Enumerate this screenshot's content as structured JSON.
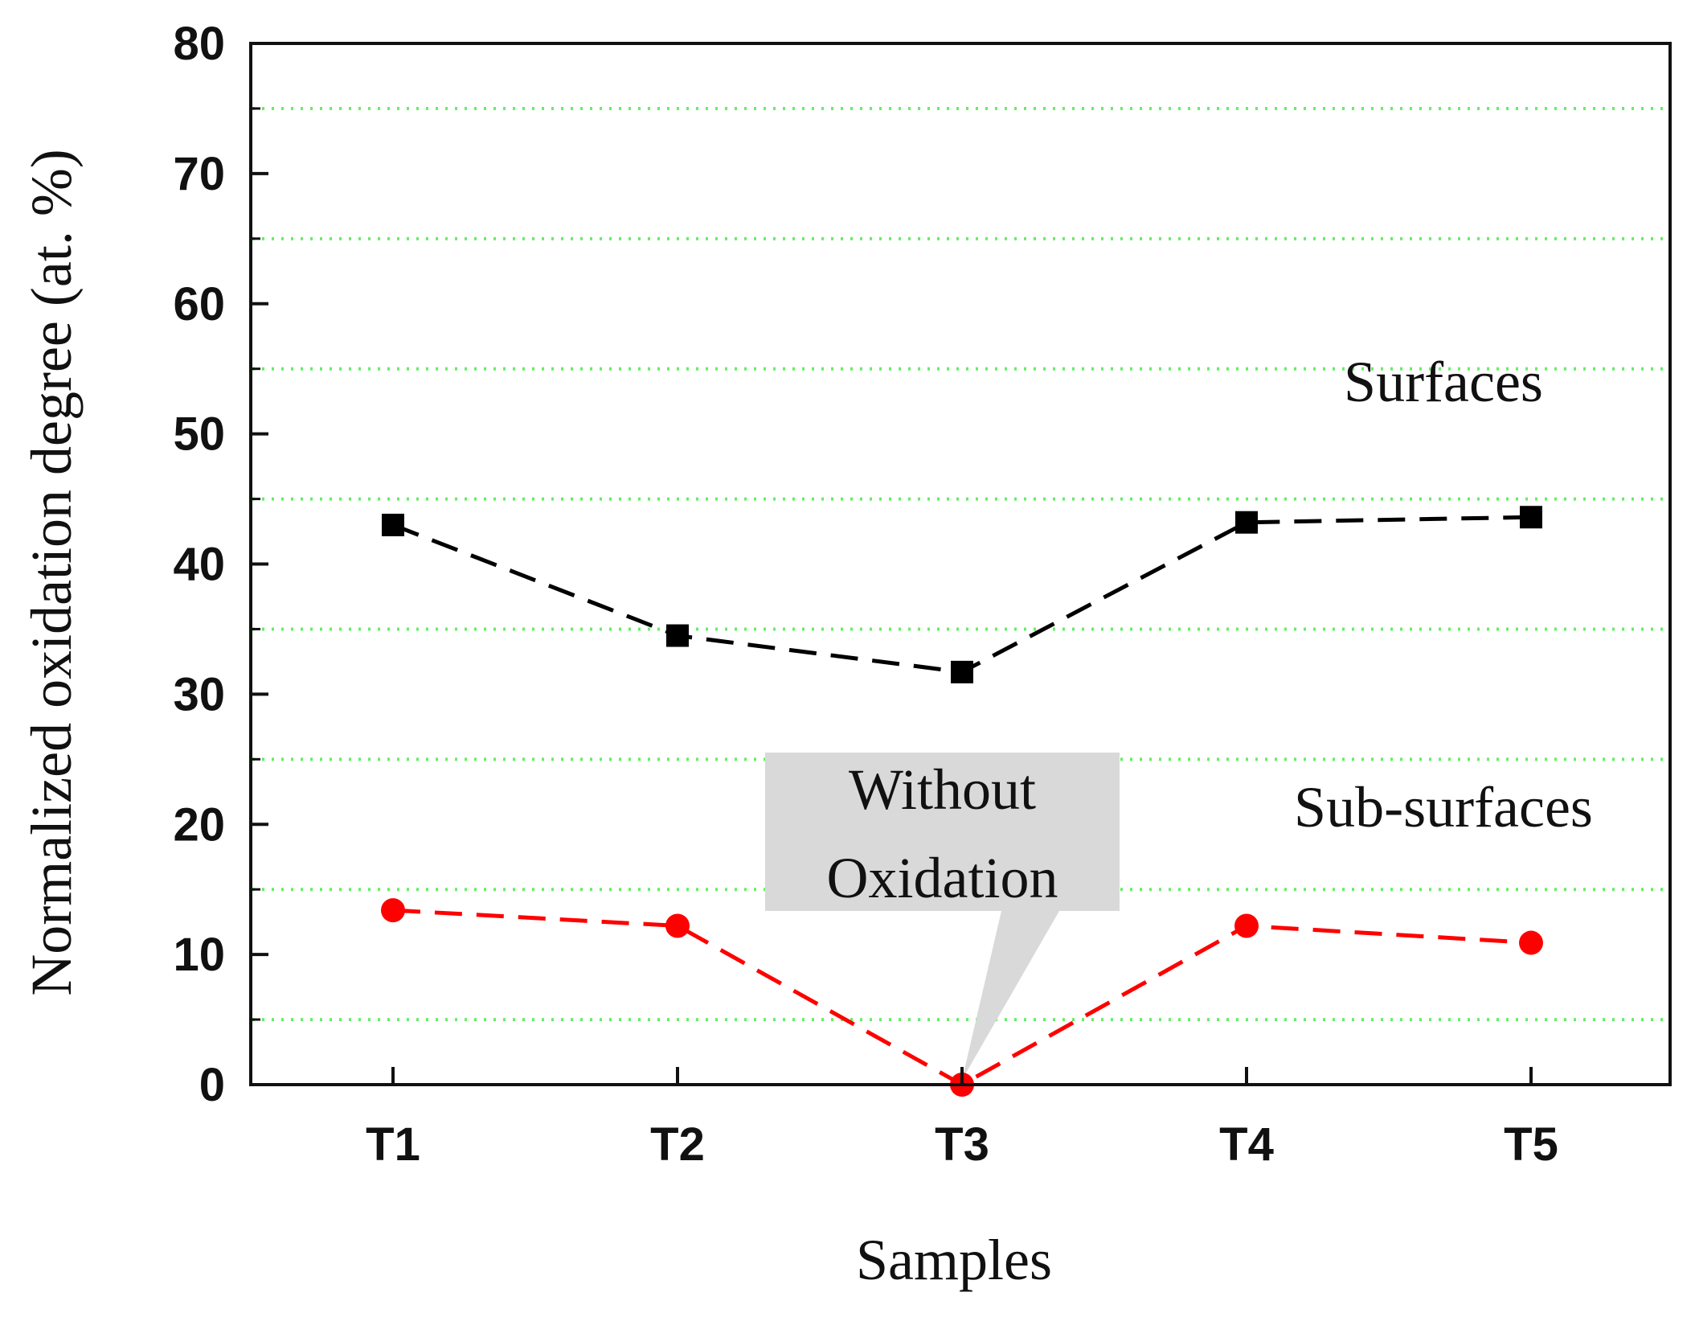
{
  "chart_data": {
    "type": "line",
    "title": "",
    "xlabel": "Samples",
    "ylabel": "Normalized oxidation degree (at. %)",
    "categories": [
      "T1",
      "T2",
      "T3",
      "T4",
      "T5"
    ],
    "ylim": [
      0,
      80
    ],
    "yticks": [
      0,
      10,
      20,
      30,
      40,
      50,
      60,
      70,
      80
    ],
    "grid_lines": [
      5,
      15,
      25,
      35,
      45,
      55,
      65,
      75
    ],
    "series": [
      {
        "name": "Surfaces",
        "values": [
          43.0,
          34.5,
          31.7,
          43.2,
          43.6
        ],
        "color": "#000000",
        "marker": "square",
        "line_style": "dashed"
      },
      {
        "name": "Sub-surfaces",
        "values": [
          13.4,
          12.2,
          0.0,
          12.2,
          10.9
        ],
        "color": "#ff0000",
        "marker": "circle",
        "line_style": "dashed"
      }
    ],
    "annotations": [
      {
        "lines": [
          "Without",
          "Oxidation"
        ],
        "points_to": "T3",
        "value": 0.0,
        "box_color": "#d9d9d9"
      }
    ],
    "colors": {
      "grid": "#66ee66",
      "axis": "#111111"
    }
  }
}
